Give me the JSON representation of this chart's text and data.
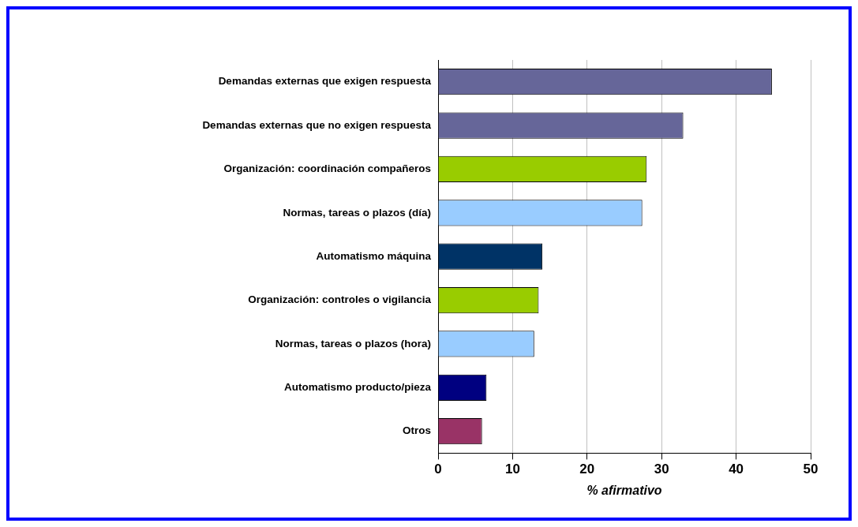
{
  "chart_data": {
    "type": "bar",
    "orientation": "horizontal",
    "xlabel": "% afirmativo",
    "categories": [
      "Demandas externas que exigen respuesta",
      "Demandas externas que no exigen respuesta",
      "Organización: coordinación compañeros",
      "Normas, tareas o plazos (día)",
      "Automatismo máquina",
      "Organización: controles o vigilancia",
      "Normas, tareas o plazos (hora)",
      "Automatismo producto/pieza",
      "Otros"
    ],
    "values": [
      44.8,
      32.9,
      28.0,
      27.4,
      14.0,
      13.5,
      12.9,
      6.5,
      5.9
    ],
    "colors": [
      "#666699",
      "#666699",
      "#99cc00",
      "#99ccff",
      "#003366",
      "#99cc00",
      "#99ccff",
      "#000080",
      "#993366"
    ],
    "xlim": [
      0,
      50
    ],
    "xticks": [
      0,
      10,
      20,
      30,
      40,
      50
    ],
    "grid": "x",
    "legend": false
  }
}
